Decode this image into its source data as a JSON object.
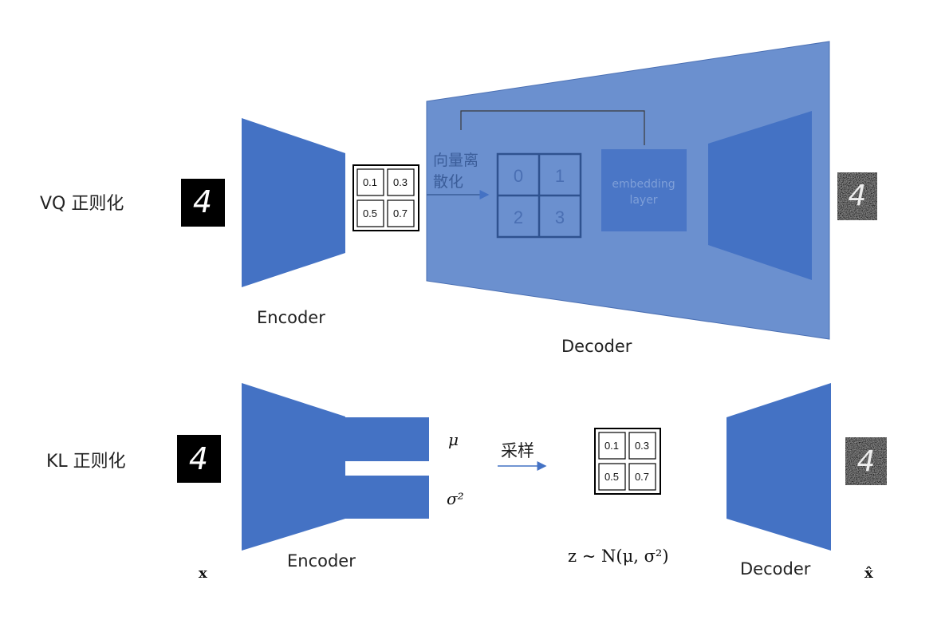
{
  "rows": {
    "vq": {
      "title": "VQ 正则化",
      "encoder_label": "Encoder",
      "decoder_label": "Decoder",
      "quantize_label_line1": "向量离",
      "quantize_label_line2": "散化",
      "latent_values": [
        "0.1",
        "0.3",
        "0.5",
        "0.7"
      ],
      "codebook_indices": [
        "0",
        "1",
        "2",
        "3"
      ],
      "embedding_line1": "embedding",
      "embedding_line2": "layer"
    },
    "kl": {
      "title": "KL 正则化",
      "encoder_label": "Encoder",
      "decoder_label": "Decoder",
      "mu_label": "μ",
      "sigma_label": "σ²",
      "sample_label": "采样",
      "latent_values": [
        "0.1",
        "0.3",
        "0.5",
        "0.7"
      ],
      "distribution_label": "z ~ N(μ, σ²)",
      "input_label": "x",
      "output_label": "x̂"
    }
  },
  "digit_glyph": "4",
  "colors": {
    "encoder_blue": "#4472c4",
    "decoder_panel": "#6b90cf",
    "codebook_stroke": "#2f528f",
    "embedding_fill": "#4a76c6"
  }
}
